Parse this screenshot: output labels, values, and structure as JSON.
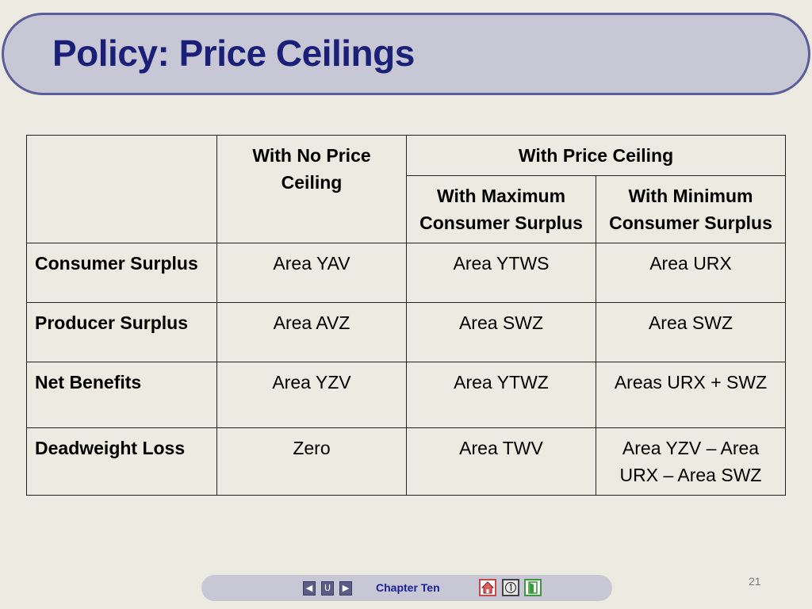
{
  "slide": {
    "title": "Policy: Price Ceilings",
    "page_number": "21"
  },
  "table": {
    "header": {
      "no_ceiling": "With No Price Ceiling",
      "with_ceiling": "With Price Ceiling",
      "max_cs": "With Maximum Consumer Surplus",
      "min_cs": "With Minimum Consumer Surplus"
    },
    "rows": [
      {
        "label": "Consumer Surplus",
        "no_ceiling": "Area YAV",
        "max_cs": "Area YTWS",
        "min_cs": "Area URX"
      },
      {
        "label": "Producer Surplus",
        "no_ceiling": "Area AVZ",
        "max_cs": "Area SWZ",
        "min_cs": "Area SWZ"
      },
      {
        "label": "Net Benefits",
        "no_ceiling": "Area YZV",
        "max_cs": "Area YTWZ",
        "min_cs": "Areas URX + SWZ"
      },
      {
        "label": "Deadweight Loss",
        "no_ceiling": "Zero",
        "max_cs": "Area TWV",
        "min_cs": "Area YZV – Area URX – Area SWZ"
      }
    ]
  },
  "nav": {
    "chapter_label": "Chapter Ten",
    "prev_icon": "triangle-left",
    "return_icon": "u-turn",
    "next_icon": "triangle-right",
    "home_icon": "house",
    "info_icon": "circled-one",
    "exit_icon": "door-exit"
  },
  "colors": {
    "background": "#edebe1",
    "title_banner": "#c8c7d6",
    "title_border": "#5c5e99",
    "title_text": "#1a1f78"
  }
}
